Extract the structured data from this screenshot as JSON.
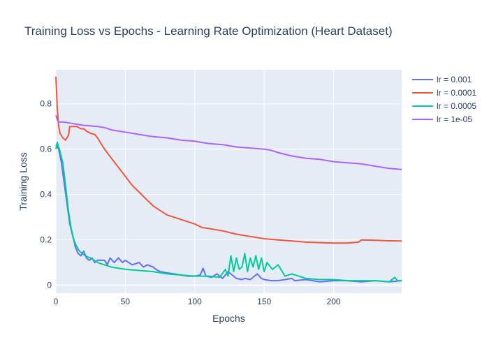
{
  "chart_data": {
    "type": "line",
    "title": "Training Loss vs Epochs - Learning Rate Optimization (Heart Dataset)",
    "xlabel": "Epochs",
    "ylabel": "Training Loss",
    "xlim": [
      0,
      249
    ],
    "ylim": [
      -0.035,
      0.95
    ],
    "xticks": [
      0,
      50,
      100,
      150,
      200
    ],
    "yticks": [
      0,
      0.2,
      0.4,
      0.6,
      0.8
    ],
    "xtick_labels": [
      "0",
      "50",
      "100",
      "150",
      "200"
    ],
    "ytick_labels": [
      "0",
      "0.2",
      "0.4",
      "0.6",
      "0.8"
    ],
    "grid": true,
    "legend_position": "right",
    "plot_bg": "#e5ecf6",
    "series": [
      {
        "name": "lr = 0.001",
        "color": "#636efa",
        "x": [
          0,
          2,
          4,
          6,
          8,
          10,
          12,
          14,
          16,
          18,
          20,
          22,
          24,
          26,
          28,
          30,
          35,
          37,
          39,
          42,
          45,
          48,
          50,
          55,
          60,
          63,
          66,
          70,
          72,
          75,
          80,
          85,
          90,
          95,
          100,
          104,
          106,
          108,
          112,
          116,
          120,
          124,
          130,
          134,
          136,
          140,
          145,
          148,
          150,
          155,
          160,
          170,
          172,
          180,
          190,
          200,
          210,
          220,
          230,
          240,
          249
        ],
        "y": [
          0.62,
          0.6,
          0.54,
          0.45,
          0.36,
          0.27,
          0.22,
          0.17,
          0.14,
          0.13,
          0.15,
          0.12,
          0.11,
          0.12,
          0.1,
          0.11,
          0.11,
          0.09,
          0.12,
          0.1,
          0.12,
          0.1,
          0.11,
          0.09,
          0.1,
          0.08,
          0.09,
          0.08,
          0.07,
          0.06,
          0.055,
          0.05,
          0.045,
          0.04,
          0.04,
          0.045,
          0.075,
          0.04,
          0.035,
          0.05,
          0.03,
          0.06,
          0.03,
          0.025,
          0.03,
          0.025,
          0.05,
          0.03,
          0.025,
          0.02,
          0.02,
          0.03,
          0.02,
          0.025,
          0.015,
          0.02,
          0.02,
          0.015,
          0.02,
          0.015,
          0.02
        ]
      },
      {
        "name": "lr = 0.0001",
        "color": "#ef553b",
        "x": [
          0,
          1,
          2,
          3,
          5,
          7,
          9,
          10,
          12,
          15,
          18,
          20,
          22,
          25,
          28,
          30,
          35,
          40,
          45,
          50,
          55,
          60,
          65,
          70,
          75,
          80,
          90,
          100,
          105,
          110,
          120,
          130,
          140,
          150,
          160,
          170,
          180,
          190,
          200,
          210,
          218,
          220,
          230,
          240,
          249
        ],
        "y": [
          0.92,
          0.78,
          0.7,
          0.67,
          0.65,
          0.64,
          0.66,
          0.7,
          0.7,
          0.7,
          0.69,
          0.69,
          0.68,
          0.67,
          0.665,
          0.65,
          0.6,
          0.56,
          0.52,
          0.48,
          0.44,
          0.41,
          0.38,
          0.35,
          0.33,
          0.31,
          0.29,
          0.27,
          0.255,
          0.25,
          0.24,
          0.225,
          0.215,
          0.205,
          0.2,
          0.195,
          0.19,
          0.188,
          0.186,
          0.186,
          0.19,
          0.2,
          0.198,
          0.196,
          0.195
        ]
      },
      {
        "name": "lr = 0.0005",
        "color": "#00cc96",
        "x": [
          0,
          1,
          3,
          5,
          7,
          9,
          11,
          13,
          15,
          17,
          19,
          21,
          25,
          30,
          35,
          40,
          50,
          60,
          70,
          80,
          90,
          100,
          110,
          118,
          122,
          124,
          126,
          128,
          130,
          132,
          134,
          136,
          138,
          140,
          142,
          144,
          146,
          148,
          150,
          152,
          156,
          160,
          165,
          170,
          180,
          190,
          200,
          210,
          220,
          230,
          240,
          244,
          246,
          249
        ],
        "y": [
          0.6,
          0.63,
          0.59,
          0.54,
          0.44,
          0.33,
          0.25,
          0.2,
          0.17,
          0.15,
          0.14,
          0.13,
          0.12,
          0.1,
          0.09,
          0.08,
          0.07,
          0.065,
          0.06,
          0.05,
          0.045,
          0.04,
          0.04,
          0.035,
          0.07,
          0.04,
          0.13,
          0.06,
          0.12,
          0.07,
          0.08,
          0.14,
          0.06,
          0.12,
          0.08,
          0.13,
          0.07,
          0.12,
          0.06,
          0.1,
          0.07,
          0.09,
          0.04,
          0.05,
          0.03,
          0.025,
          0.025,
          0.02,
          0.02,
          0.02,
          0.015,
          0.035,
          0.02,
          0.02
        ]
      },
      {
        "name": "lr = 1e-05",
        "color": "#ab63fa",
        "x": [
          0,
          1,
          2,
          5,
          10,
          15,
          20,
          30,
          35,
          40,
          50,
          60,
          70,
          80,
          90,
          100,
          110,
          120,
          130,
          140,
          150,
          155,
          160,
          170,
          175,
          180,
          190,
          200,
          210,
          220,
          230,
          240,
          249
        ],
        "y": [
          0.75,
          0.73,
          0.72,
          0.72,
          0.715,
          0.71,
          0.705,
          0.7,
          0.695,
          0.685,
          0.675,
          0.665,
          0.655,
          0.65,
          0.64,
          0.635,
          0.625,
          0.62,
          0.61,
          0.605,
          0.6,
          0.595,
          0.585,
          0.57,
          0.565,
          0.56,
          0.555,
          0.545,
          0.54,
          0.535,
          0.525,
          0.515,
          0.51
        ]
      }
    ]
  }
}
